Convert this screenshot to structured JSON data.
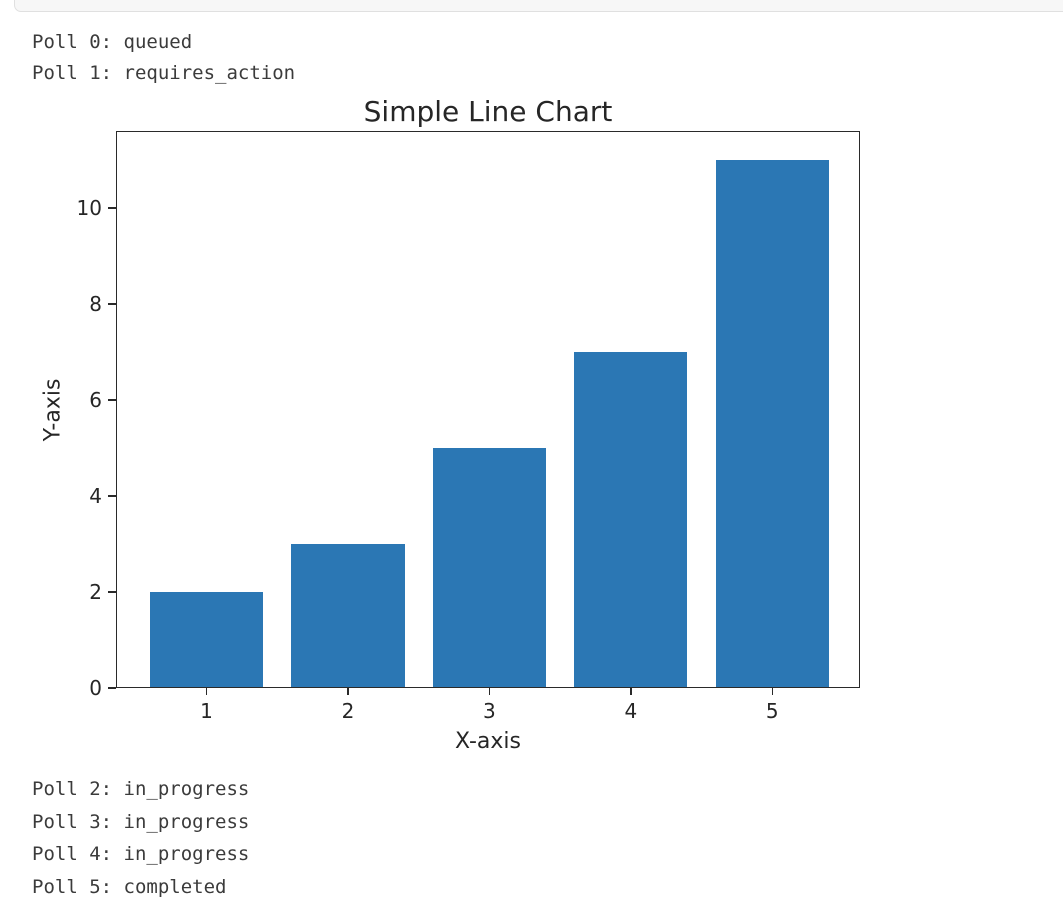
{
  "stdout_top": [
    "Poll 0: queued",
    "Poll 1: requires_action"
  ],
  "stdout_bottom": [
    "Poll 2: in_progress",
    "Poll 3: in_progress",
    "Poll 4: in_progress",
    "Poll 5: completed"
  ],
  "chart_data": {
    "type": "bar",
    "title": "Simple Line Chart",
    "xlabel": "X-axis",
    "ylabel": "Y-axis",
    "categories": [
      1,
      2,
      3,
      4,
      5
    ],
    "values": [
      2,
      3,
      5,
      7,
      11
    ],
    "xticks": [
      1,
      2,
      3,
      4,
      5
    ],
    "yticks": [
      0,
      2,
      4,
      6,
      8,
      10
    ],
    "xlim": [
      0.36,
      5.62
    ],
    "ylim": [
      0,
      11.6
    ],
    "bar_width": 0.8,
    "bar_color": "#2b77b4",
    "grid": false,
    "legend": "none"
  },
  "colors": {
    "background": "#ffffff",
    "axis": "#2a2a2a",
    "stdout_text": "#3b3b3b",
    "prev_cell_bg": "#f7f7f7",
    "prev_cell_border": "#e0e0e0"
  }
}
